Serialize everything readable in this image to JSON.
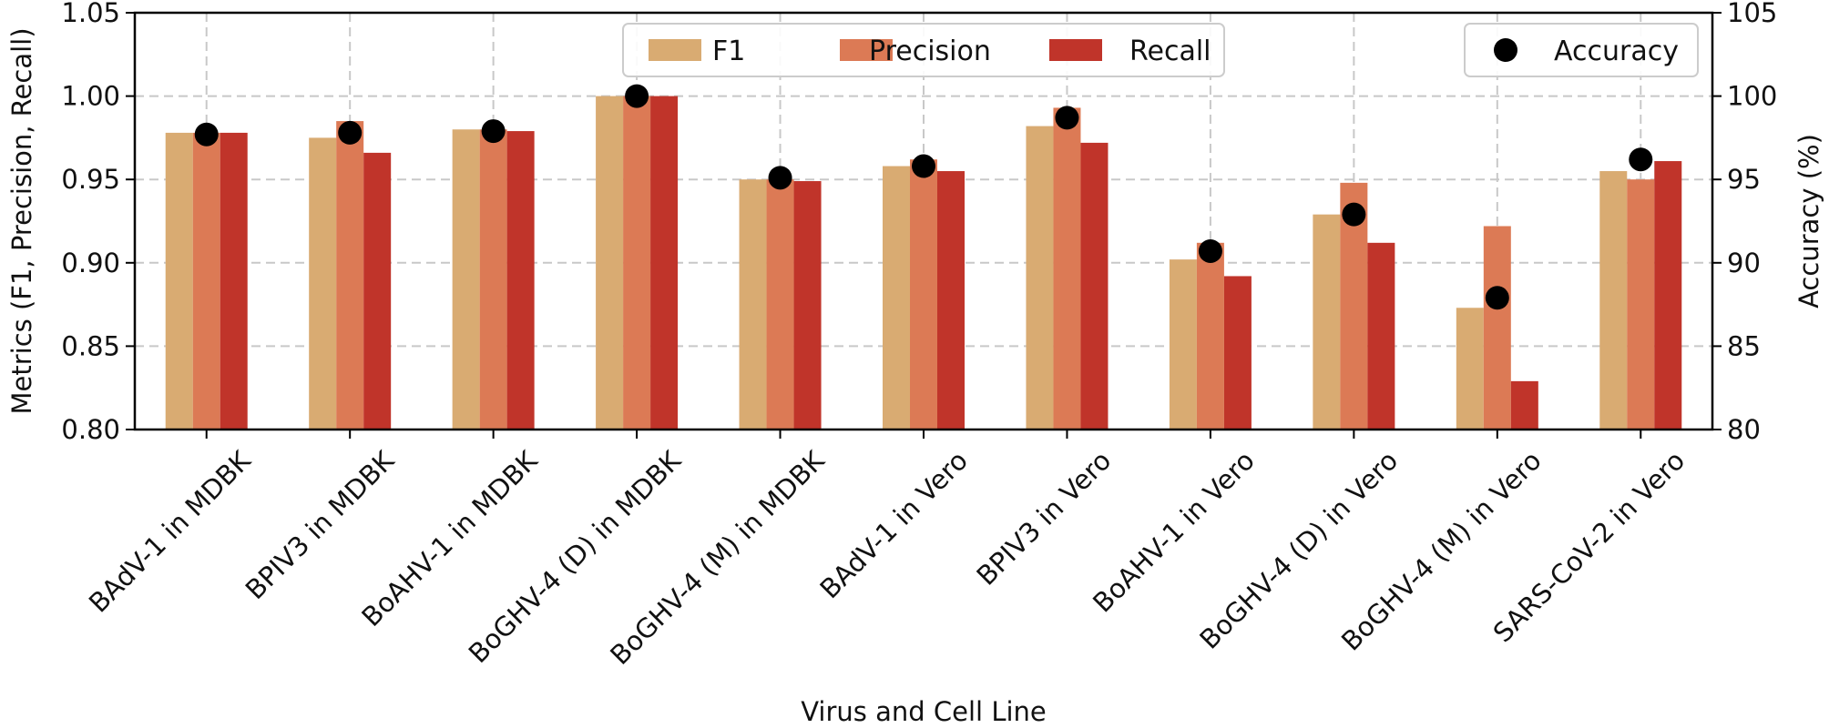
{
  "chart_data": {
    "type": "bar",
    "categories": [
      "BAdV-1 in MDBK",
      "BPIV3 in MDBK",
      "BoAHV-1 in MDBK",
      "BoGHV-4 (D) in MDBK",
      "BoGHV-4 (M) in MDBK",
      "BAdV-1 in Vero",
      "BPIV3 in Vero",
      "BoAHV-1 in Vero",
      "BoGHV-4 (D) in Vero",
      "BoGHV-4 (M) in Vero",
      "SARS-CoV-2 in Vero"
    ],
    "series": [
      {
        "name": "F1",
        "color": "#d9ab72",
        "values": [
          0.978,
          0.975,
          0.98,
          1.0,
          0.95,
          0.958,
          0.982,
          0.902,
          0.929,
          0.873,
          0.955
        ]
      },
      {
        "name": "Precision",
        "color": "#dc7a55",
        "values": [
          0.978,
          0.985,
          0.98,
          1.0,
          0.95,
          0.962,
          0.993,
          0.912,
          0.948,
          0.922,
          0.95
        ]
      },
      {
        "name": "Recall",
        "color": "#c0342a",
        "values": [
          0.978,
          0.966,
          0.979,
          1.0,
          0.949,
          0.955,
          0.972,
          0.892,
          0.912,
          0.829,
          0.961
        ]
      }
    ],
    "accuracy": {
      "name": "Accuracy",
      "color": "#000000",
      "values": [
        97.7,
        97.8,
        97.9,
        100.0,
        95.1,
        95.8,
        98.7,
        90.7,
        92.9,
        87.9,
        96.2
      ]
    },
    "xlabel": "Virus and Cell Line",
    "ylabel": "Metrics (F1, Precision, Recall)",
    "y2label": "Accuracy (%)",
    "ylim": [
      0.8,
      1.05
    ],
    "y2lim": [
      80,
      105
    ],
    "yticks": [
      "0.80",
      "0.85",
      "0.90",
      "0.95",
      "1.00",
      "1.05"
    ],
    "y2ticks": [
      "80",
      "85",
      "90",
      "95",
      "100",
      "105"
    ],
    "grid": true,
    "legend_bars_position": "top-center",
    "legend_accuracy_position": "top-right"
  }
}
